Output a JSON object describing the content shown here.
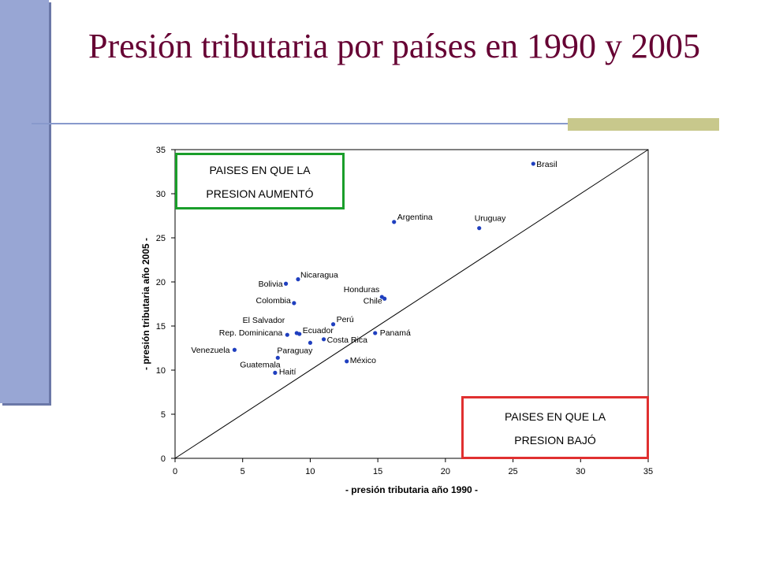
{
  "title": "Presión tributaria por países en 1990 y 2005",
  "annotations": {
    "increased_line1": "PAISES EN QUE LA",
    "increased_line2": "PRESION AUMENTÓ",
    "decreased_line1": "PAISES EN QUE LA",
    "decreased_line2": "PRESION BAJÓ"
  },
  "colors": {
    "title": "#660033",
    "points": "#1f3fbf",
    "increased_box": "#1a9e2a",
    "decreased_box": "#e03030",
    "side_bar": "#98a6d4"
  },
  "chart_data": {
    "type": "scatter",
    "title": "",
    "xlabel": "- presión tributaria año 1990 -",
    "ylabel": "- presión tributaria año 2005 -",
    "xlim": [
      0,
      35
    ],
    "ylim": [
      0,
      35
    ],
    "xticks": [
      0,
      5,
      10,
      15,
      20,
      25,
      30,
      35
    ],
    "yticks": [
      0,
      5,
      10,
      15,
      20,
      25,
      30,
      35
    ],
    "reference_line": "y = x",
    "grid": false,
    "points": [
      {
        "label": "Brasil",
        "x": 26.5,
        "y": 33.4
      },
      {
        "label": "Argentina",
        "x": 16.2,
        "y": 26.8
      },
      {
        "label": "Uruguay",
        "x": 22.5,
        "y": 26.1
      },
      {
        "label": "Nicaragua",
        "x": 9.1,
        "y": 20.3
      },
      {
        "label": "Bolivia",
        "x": 8.2,
        "y": 19.8
      },
      {
        "label": "Honduras",
        "x": 15.3,
        "y": 18.3
      },
      {
        "label": "Chile",
        "x": 15.5,
        "y": 18.1
      },
      {
        "label": "Colombia",
        "x": 8.8,
        "y": 17.6
      },
      {
        "label": "Perú",
        "x": 11.7,
        "y": 15.2
      },
      {
        "label": "El Salvador",
        "x": 9.0,
        "y": 14.2
      },
      {
        "label": "Ecuador",
        "x": 9.2,
        "y": 14.1
      },
      {
        "label": "Panamá",
        "x": 14.8,
        "y": 14.2
      },
      {
        "label": "Rep. Dominicana",
        "x": 8.3,
        "y": 14.0
      },
      {
        "label": "Costa Rica",
        "x": 11.0,
        "y": 13.5
      },
      {
        "label": "Paraguay",
        "x": 10.0,
        "y": 13.1
      },
      {
        "label": "Venezuela",
        "x": 4.4,
        "y": 12.3
      },
      {
        "label": "Guatemala",
        "x": 7.6,
        "y": 11.4
      },
      {
        "label": "México",
        "x": 12.7,
        "y": 11.0
      },
      {
        "label": "Haití",
        "x": 7.4,
        "y": 9.7
      }
    ]
  }
}
